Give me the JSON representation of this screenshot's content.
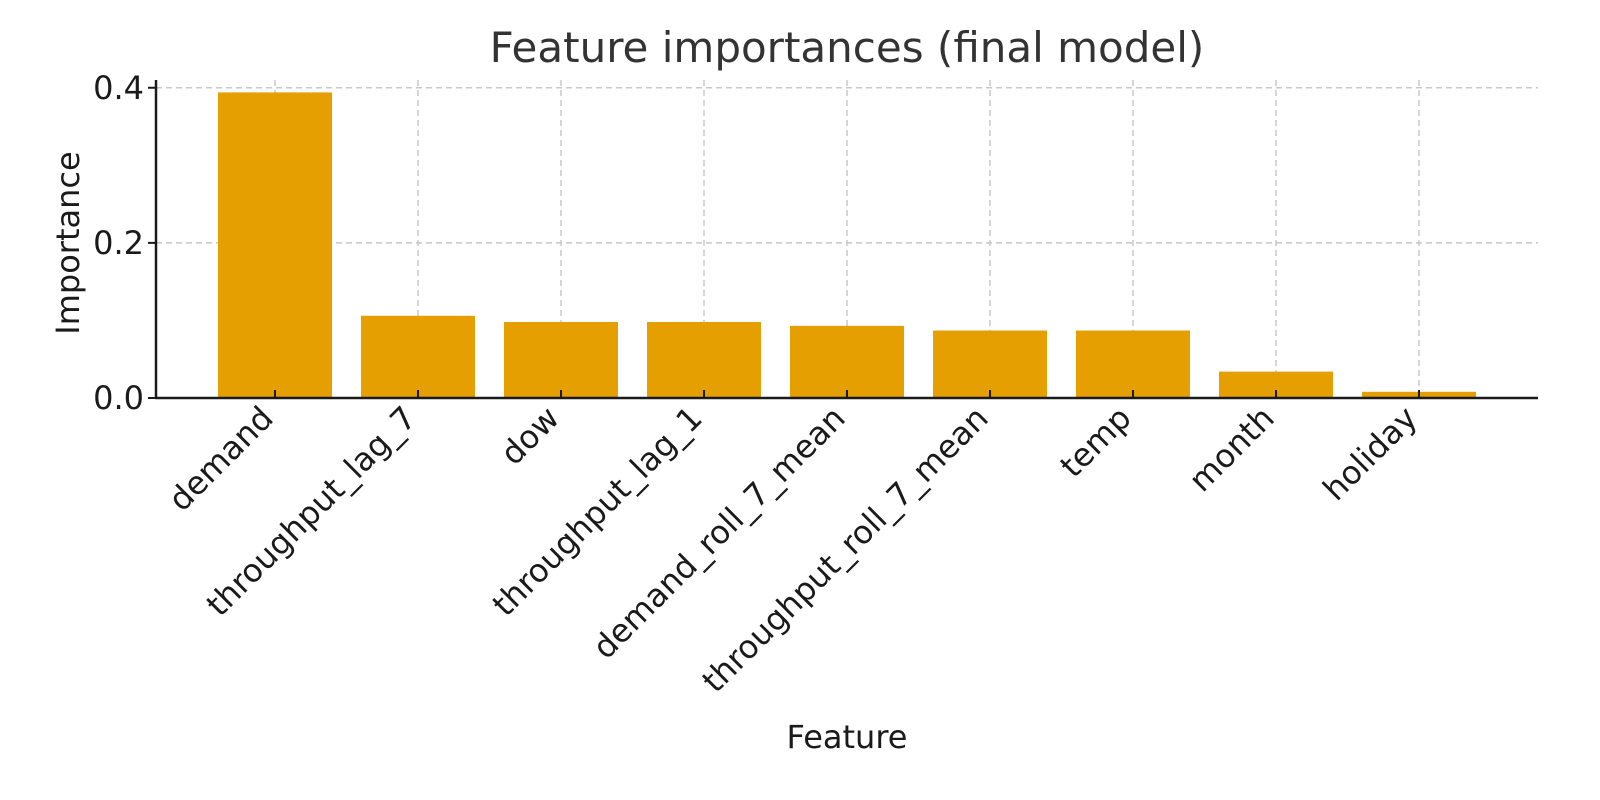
{
  "chart_data": {
    "type": "bar",
    "title": "Feature importances (final model)",
    "xlabel": "Feature",
    "ylabel": "Importance",
    "categories": [
      "demand",
      "throughput_lag_7",
      "dow",
      "throughput_lag_1",
      "demand_roll_7_mean",
      "throughput_roll_7_mean",
      "temp",
      "month",
      "holiday"
    ],
    "values": [
      0.394,
      0.106,
      0.098,
      0.098,
      0.093,
      0.087,
      0.087,
      0.034,
      0.008
    ],
    "ylim": [
      0,
      0.41
    ],
    "yticks": [
      0.0,
      0.2,
      0.4
    ],
    "ytick_labels": [
      "0.0",
      "0.2",
      "0.4"
    ],
    "grid": true,
    "bar_color": "#E69F00"
  }
}
